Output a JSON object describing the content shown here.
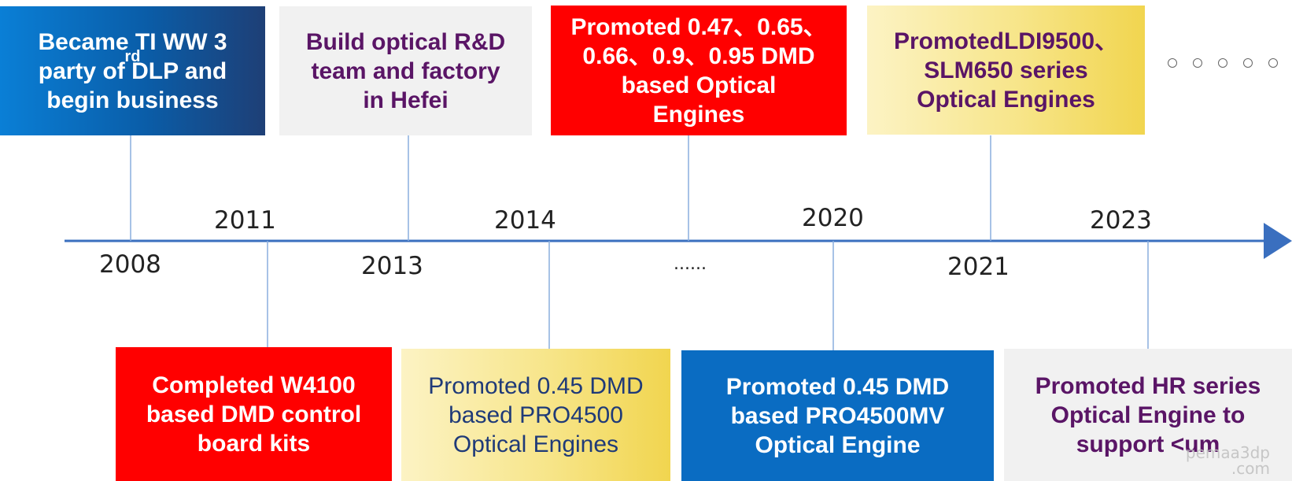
{
  "timeline": {
    "years_above": [
      "2011",
      "2014",
      "2020",
      "2023"
    ],
    "years_below": [
      "2008",
      "2013",
      "2021"
    ],
    "ellipsis": "......",
    "more_marker": "○ ○ ○ ○ ○"
  },
  "top_boxes": [
    {
      "lines": [
        "Became TI WW 3",
        "party of DLP and",
        "begin business"
      ],
      "sup": "rd"
    },
    {
      "lines": [
        "Build optical R&D",
        "team and factory",
        "in Hefei"
      ]
    },
    {
      "lines": [
        "Promoted 0.47、0.65、",
        "0.66、0.9、0.95 DMD",
        "based Optical",
        "Engines"
      ]
    },
    {
      "lines": [
        "PromotedLDI9500、",
        "SLM650 series",
        "Optical Engines"
      ]
    }
  ],
  "bottom_boxes": [
    {
      "lines": [
        "Completed W4100",
        "based DMD control",
        "board kits"
      ]
    },
    {
      "lines": [
        "Promoted 0.45 DMD",
        "based PRO4500",
        "Optical Engines"
      ]
    },
    {
      "lines": [
        "Promoted 0.45 DMD",
        "based PRO4500MV",
        "Optical Engine"
      ]
    },
    {
      "lines": [
        "Promoted HR series",
        "Optical Engine to",
        "support <um"
      ]
    }
  ],
  "watermark": [
    "pemaa3dp",
    ".com"
  ],
  "colors": {
    "axis": "#3a6fbf",
    "connector": "#8aaede",
    "red_box": "#ff0000",
    "blue_box": "#0a6cc2",
    "purple_text": "#5a1566"
  }
}
